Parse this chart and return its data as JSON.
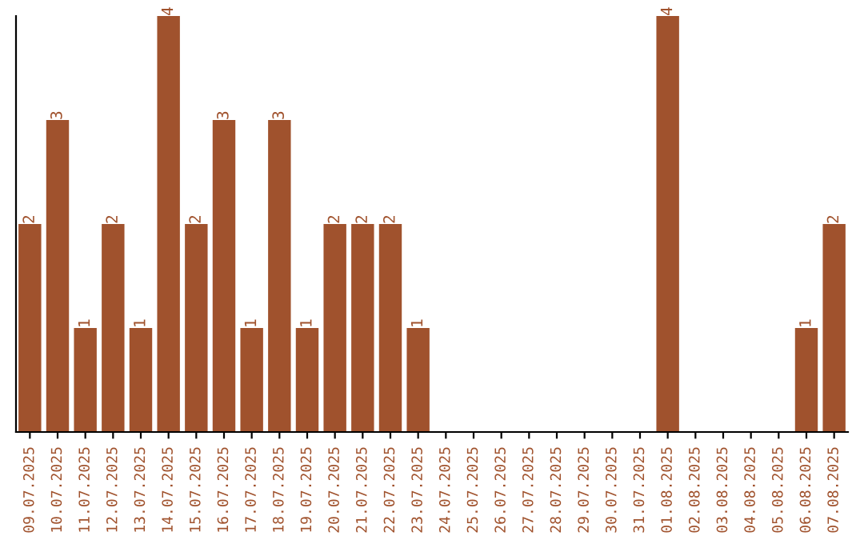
{
  "chart_data": {
    "type": "bar",
    "categories": [
      "09.07.2025",
      "10.07.2025",
      "11.07.2025",
      "12.07.2025",
      "13.07.2025",
      "14.07.2025",
      "15.07.2025",
      "16.07.2025",
      "17.07.2025",
      "18.07.2025",
      "19.07.2025",
      "20.07.2025",
      "21.07.2025",
      "22.07.2025",
      "23.07.2025",
      "24.07.2025",
      "25.07.2025",
      "26.07.2025",
      "27.07.2025",
      "28.07.2025",
      "29.07.2025",
      "30.07.2025",
      "31.07.2025",
      "01.08.2025",
      "02.08.2025",
      "03.08.2025",
      "04.08.2025",
      "05.08.2025",
      "06.08.2025",
      "07.08.2025"
    ],
    "values": [
      2,
      3,
      1,
      2,
      1,
      4,
      2,
      3,
      1,
      3,
      1,
      2,
      2,
      2,
      1,
      0,
      0,
      0,
      0,
      0,
      0,
      0,
      0,
      4,
      0,
      0,
      0,
      0,
      1,
      2
    ],
    "value_labels": [
      "2",
      "3",
      "1",
      "2",
      "1",
      "4",
      "2",
      "3",
      "1",
      "3",
      "1",
      "2",
      "2",
      "2",
      "1",
      null,
      null,
      null,
      null,
      null,
      null,
      null,
      null,
      "4",
      null,
      null,
      null,
      null,
      "1",
      "2"
    ],
    "color": "#a0522d",
    "tick_labels": "x",
    "grid": false
  }
}
